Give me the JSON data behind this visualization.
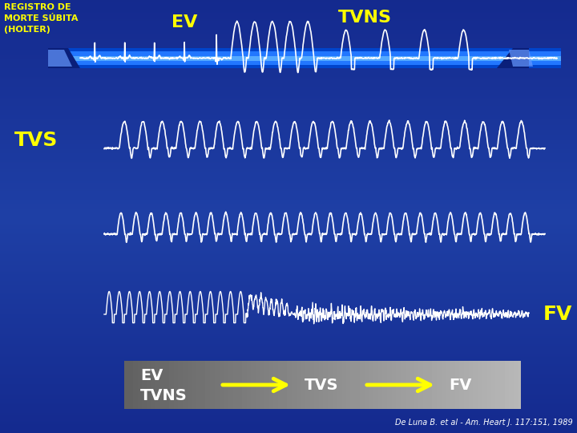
{
  "title_left": "REGISTRO DE\nMORTE SÚBITA\n(HOLTER)",
  "label_ev": "EV",
  "label_tvns": "TVNS",
  "label_tvs": "TVS",
  "label_fv": "FV",
  "bg_color": "#0a1f7a",
  "text_color_yellow": "#ffff00",
  "text_color_white": "#ffffff",
  "citation": "De Luna B. et al - Am. Heart J. 117:151, 1989",
  "arrow_color": "#ffff00",
  "stripe_blue_dark": "#0033bb",
  "stripe_blue_bright": "#1a6aff",
  "grey_box_left": "#999999",
  "grey_box_right": "#555555"
}
